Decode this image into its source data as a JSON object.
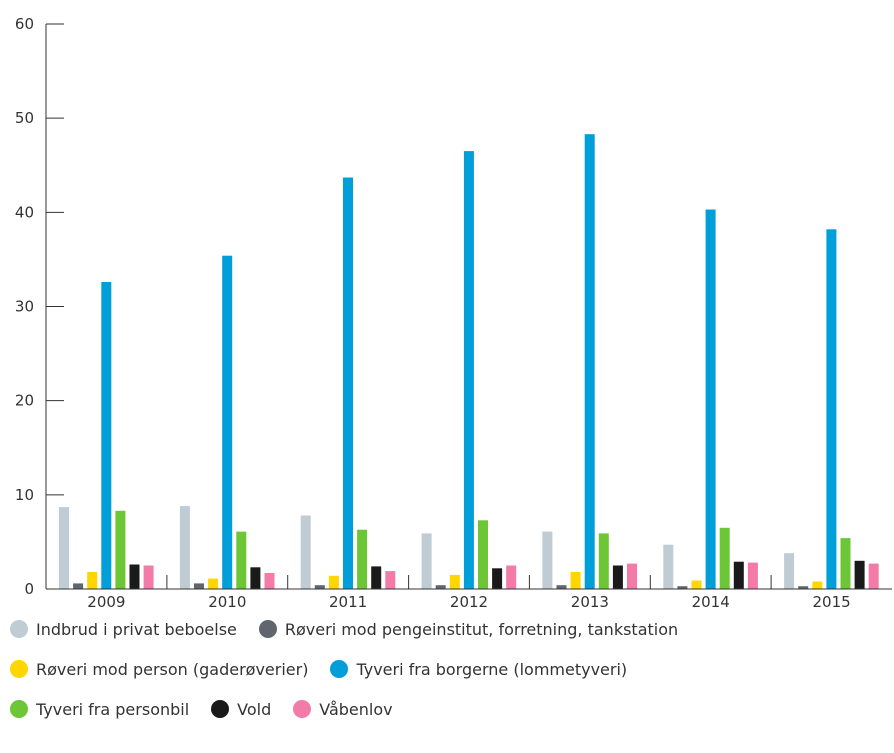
{
  "chart_data": {
    "type": "bar",
    "categories": [
      "2009",
      "2010",
      "2011",
      "2012",
      "2013",
      "2014",
      "2015"
    ],
    "ylim": [
      0,
      60
    ],
    "yticks": [
      0,
      10,
      20,
      30,
      40,
      50,
      60
    ],
    "series": [
      {
        "name": "Indbrud i privat beboelse",
        "color": "#bfccd4",
        "values": [
          8.7,
          8.8,
          7.8,
          5.9,
          6.1,
          4.7,
          3.8
        ]
      },
      {
        "name": "Røveri mod pengeinstitut, forretning, tankstation",
        "color": "#5f666d",
        "values": [
          0.6,
          0.6,
          0.4,
          0.4,
          0.4,
          0.3,
          0.3
        ]
      },
      {
        "name": "Røveri mod person (gaderøverier)",
        "color": "#ffd600",
        "values": [
          1.8,
          1.1,
          1.4,
          1.5,
          1.8,
          0.9,
          0.8
        ]
      },
      {
        "name": "Tyveri fra borgerne (lommetyveri)",
        "color": "#009fd9",
        "values": [
          32.6,
          35.4,
          43.7,
          46.5,
          48.3,
          40.3,
          38.2
        ]
      },
      {
        "name": "Tyveri fra personbil",
        "color": "#6cc636",
        "values": [
          8.3,
          6.1,
          6.3,
          7.3,
          5.9,
          6.5,
          5.4
        ]
      },
      {
        "name": "Vold",
        "color": "#1a1a1a",
        "values": [
          2.6,
          2.3,
          2.4,
          2.2,
          2.5,
          2.9,
          3.0
        ]
      },
      {
        "name": "Våbenlov",
        "color": "#f47ba7",
        "values": [
          2.5,
          1.7,
          1.9,
          2.5,
          2.7,
          2.8,
          2.7
        ]
      }
    ],
    "legend_rows": [
      [
        0,
        1
      ],
      [
        2,
        3
      ],
      [
        4,
        5,
        6
      ]
    ],
    "grid": false,
    "legend_position": "bottom"
  }
}
